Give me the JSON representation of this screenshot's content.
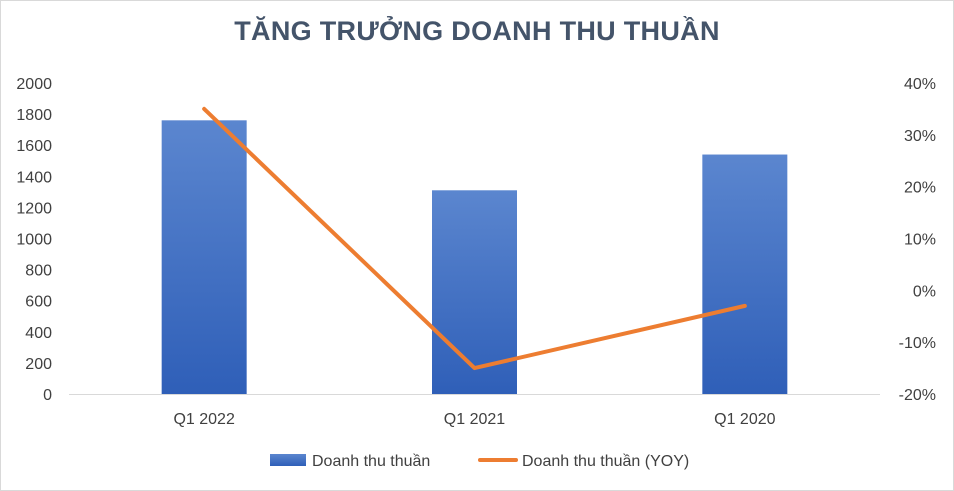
{
  "chart_data": {
    "type": "bar",
    "title": "TĂNG TRƯỞNG DOANH THU THUẦN",
    "categories": [
      "Q1 2022",
      "Q1 2021",
      "Q1 2020"
    ],
    "series": [
      {
        "name": "Doanh thu thuần",
        "type": "bar",
        "axis": "left",
        "values": [
          1760,
          1310,
          1540
        ],
        "color": "#4472c4"
      },
      {
        "name": "Doanh thu thuần (YOY)",
        "type": "line",
        "axis": "right",
        "values": [
          0.35,
          -0.15,
          -0.03
        ],
        "color": "#ed7d31"
      }
    ],
    "y_left": {
      "min": 0,
      "max": 2000,
      "step": 200,
      "ticks": [
        "0",
        "200",
        "400",
        "600",
        "800",
        "1000",
        "1200",
        "1400",
        "1600",
        "1800",
        "2000"
      ]
    },
    "y_right": {
      "min": -0.2,
      "max": 0.4,
      "step": 0.1,
      "ticks": [
        "-20%",
        "-10%",
        "0%",
        "10%",
        "20%",
        "30%",
        "40%"
      ]
    },
    "grid": false,
    "legend_position": "bottom"
  }
}
